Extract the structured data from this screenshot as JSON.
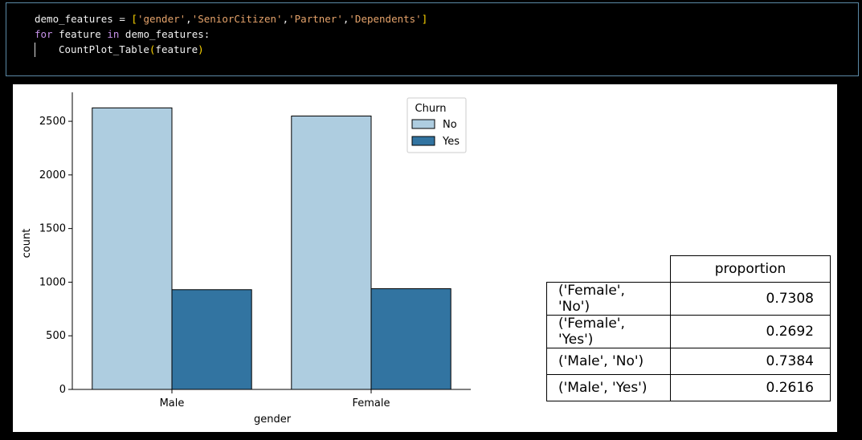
{
  "code": {
    "var_name": "demo_features",
    "list_items": [
      "'gender'",
      "'SeniorCitizen'",
      "'Partner'",
      "'Dependents'"
    ],
    "for_kw": "for",
    "loop_var": "feature",
    "in_kw": "in",
    "iter_name": "demo_features:",
    "func_name": "CountPlot_Table",
    "func_arg": "feature"
  },
  "chart_data": {
    "type": "bar",
    "categories": [
      "Male",
      "Female"
    ],
    "series": [
      {
        "name": "No",
        "values": [
          2625,
          2549
        ],
        "color": "#aecde0"
      },
      {
        "name": "Yes",
        "values": [
          930,
          939
        ],
        "color": "#3274a1"
      }
    ],
    "xlabel": "gender",
    "ylabel": "count",
    "ylim": [
      0,
      2770
    ],
    "yticks": [
      0,
      500,
      1000,
      1500,
      2000,
      2500
    ],
    "legend": {
      "title": "Churn",
      "placement": "top-right"
    }
  },
  "table": {
    "column": "proportion",
    "rows": [
      {
        "index": "('Female', 'No')",
        "value": "0.7308"
      },
      {
        "index": "('Female', 'Yes')",
        "value": "0.2692"
      },
      {
        "index": "('Male', 'No')",
        "value": "0.7384"
      },
      {
        "index": "('Male', 'Yes')",
        "value": "0.2616"
      }
    ]
  }
}
